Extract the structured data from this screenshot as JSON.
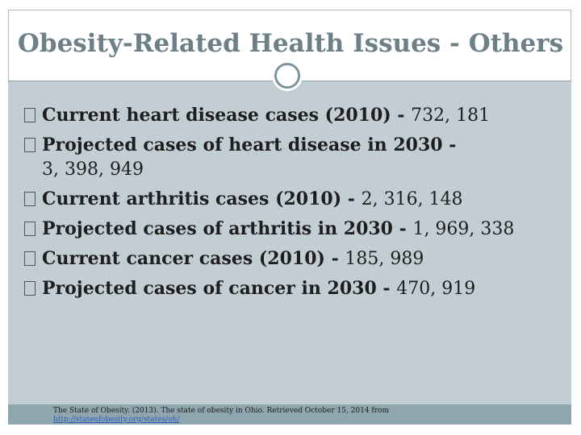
{
  "slide": {
    "title": "Obesity-Related Health Issues - Others",
    "bullets": [
      {
        "label": "Current heart disease cases (2010) - ",
        "value": "732, 181"
      },
      {
        "label": "Projected cases of heart disease in 2030 - ",
        "value": "3, 398, 949"
      },
      {
        "label": "Current arthritis cases (2010) - ",
        "value": "2, 316, 148"
      },
      {
        "label": "Projected cases of arthritis in 2030 - ",
        "value": "1, 969, 338"
      },
      {
        "label": "Current cancer cases (2010) - ",
        "value": "185, 989"
      },
      {
        "label": "Projected cases of cancer in 2030 - ",
        "value": "470, 919"
      }
    ],
    "citation": "The State of Obesity. (2013). The state of obesity in Ohio. Retrieved October 15, 2014 from",
    "citation_link": "http://stateofobesity.org/states/oh/"
  }
}
